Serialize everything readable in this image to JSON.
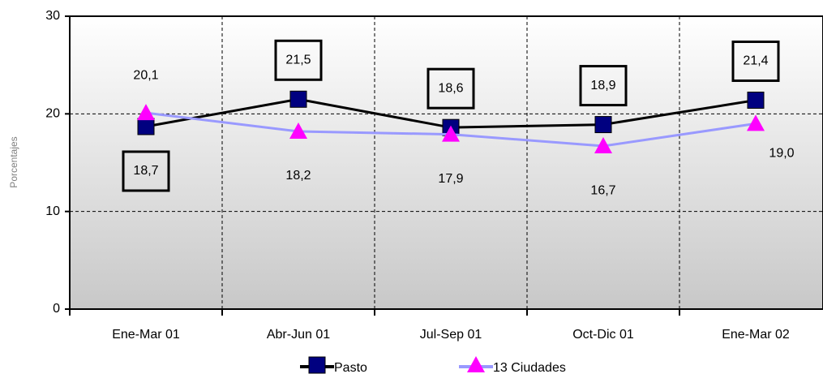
{
  "chart_data": {
    "type": "line",
    "y_label": "Porcentajes",
    "categories": [
      "Ene-Mar 01",
      "Abr-Jun 01",
      "Jul-Sep 01",
      "Oct-Dic 01",
      "Ene-Mar 02"
    ],
    "series": [
      {
        "name": "Pasto",
        "color": "#000080",
        "line_color": "#000000",
        "marker": "square",
        "values": [
          18.7,
          21.5,
          18.6,
          18.9,
          21.4
        ],
        "value_labels": [
          "18,7",
          "21,5",
          "18,6",
          "18,9",
          "21,4"
        ]
      },
      {
        "name": "13 Ciudades",
        "color": "#ff00ff",
        "line_color": "#9999ff",
        "marker": "triangle",
        "values": [
          20.1,
          18.2,
          17.9,
          16.7,
          19.0
        ],
        "value_labels": [
          "20,1",
          "18,2",
          "17,9",
          "16,7",
          "19,0"
        ]
      }
    ],
    "ylim": [
      0,
      30
    ],
    "yticks": [
      0,
      10,
      20,
      30
    ],
    "grid": true
  }
}
